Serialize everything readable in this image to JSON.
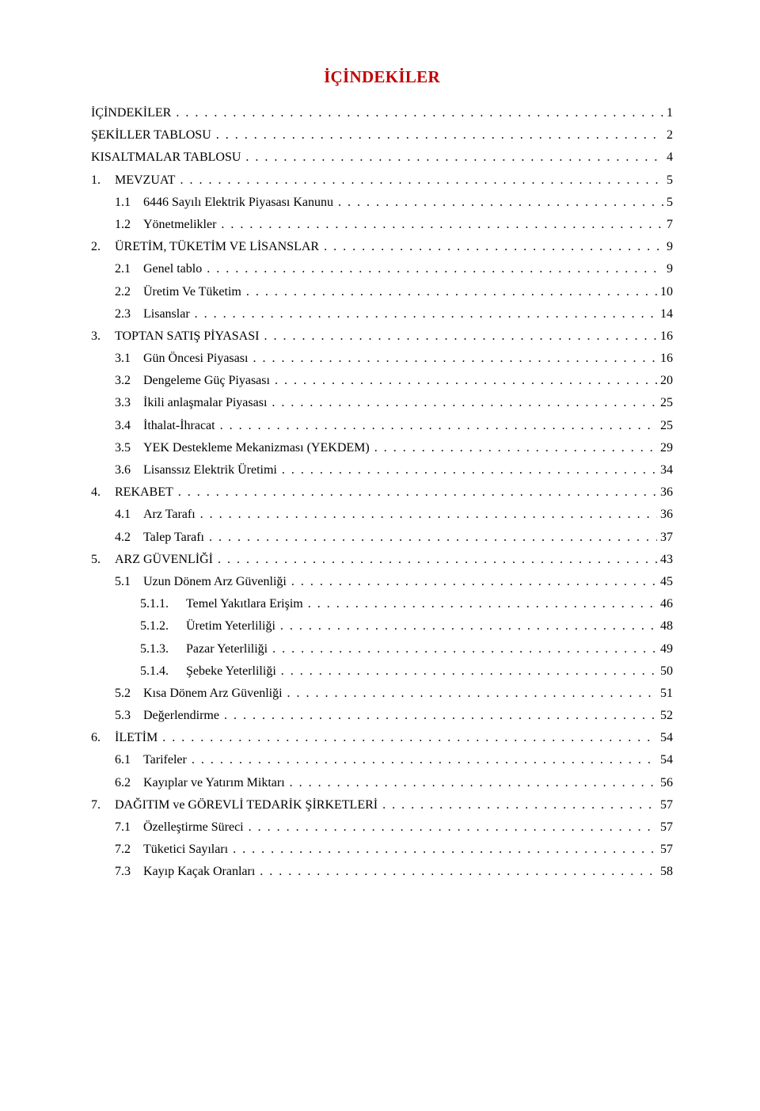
{
  "title": "İÇİNDEKİLER",
  "title_color": "#c00000",
  "text_color": "#000000",
  "background_color": "#ffffff",
  "font_family": "Times New Roman",
  "base_fontsize_pt": 12,
  "title_fontsize_pt": 16,
  "entries": [
    {
      "level": 0,
      "num": "",
      "text": "İÇİNDEKİLER",
      "page": "1"
    },
    {
      "level": 0,
      "num": "",
      "text": "ŞEKİLLER TABLOSU",
      "page": "2"
    },
    {
      "level": 0,
      "num": "",
      "text": "KISALTMALAR TABLOSU",
      "page": "4"
    },
    {
      "level": 0,
      "num": "1.",
      "text": "MEVZUAT",
      "page": "5"
    },
    {
      "level": 1,
      "num": "1.1",
      "text": "6446 Sayılı Elektrik Piyasası Kanunu",
      "page": "5"
    },
    {
      "level": 1,
      "num": "1.2",
      "text": "Yönetmelikler",
      "page": "7"
    },
    {
      "level": 0,
      "num": "2.",
      "text": "ÜRETİM, TÜKETİM VE LİSANSLAR",
      "page": "9"
    },
    {
      "level": 1,
      "num": "2.1",
      "text": "Genel tablo",
      "page": "9"
    },
    {
      "level": 1,
      "num": "2.2",
      "text": "Üretim Ve Tüketim",
      "page": "10"
    },
    {
      "level": 1,
      "num": "2.3",
      "text": "Lisanslar",
      "page": "14"
    },
    {
      "level": 0,
      "num": "3.",
      "text": "TOPTAN SATIŞ PİYASASI",
      "page": "16"
    },
    {
      "level": 1,
      "num": "3.1",
      "text": "Gün Öncesi Piyasası",
      "page": "16"
    },
    {
      "level": 1,
      "num": "3.2",
      "text": "Dengeleme Güç Piyasası",
      "page": "20"
    },
    {
      "level": 1,
      "num": "3.3",
      "text": "İkili anlaşmalar Piyasası",
      "page": "25"
    },
    {
      "level": 1,
      "num": "3.4",
      "text": "İthalat-İhracat",
      "page": "25"
    },
    {
      "level": 1,
      "num": "3.5",
      "text": "YEK Destekleme Mekanizması (YEKDEM)",
      "page": "29"
    },
    {
      "level": 1,
      "num": "3.6",
      "text": "Lisanssız Elektrik Üretimi",
      "page": "34"
    },
    {
      "level": 0,
      "num": "4.",
      "text": "REKABET",
      "page": "36"
    },
    {
      "level": 1,
      "num": "4.1",
      "text": "Arz Tarafı",
      "page": "36"
    },
    {
      "level": 1,
      "num": "4.2",
      "text": "Talep Tarafı",
      "page": "37"
    },
    {
      "level": 0,
      "num": "5.",
      "text": "ARZ GÜVENLİĞİ",
      "page": "43"
    },
    {
      "level": 1,
      "num": "5.1",
      "text": "Uzun Dönem Arz Güvenliği",
      "page": "45"
    },
    {
      "level": 2,
      "num": "5.1.1.",
      "text": "Temel Yakıtlara Erişim",
      "page": "46"
    },
    {
      "level": 2,
      "num": "5.1.2.",
      "text": "Üretim Yeterliliği",
      "page": "48"
    },
    {
      "level": 2,
      "num": "5.1.3.",
      "text": "Pazar Yeterliliği",
      "page": "49"
    },
    {
      "level": 2,
      "num": "5.1.4.",
      "text": "Şebeke Yeterliliği",
      "page": "50"
    },
    {
      "level": 1,
      "num": "5.2",
      "text": "Kısa Dönem Arz Güvenliği",
      "page": "51"
    },
    {
      "level": 1,
      "num": "5.3",
      "text": "Değerlendirme",
      "page": "52"
    },
    {
      "level": 0,
      "num": "6.",
      "text": "İLETİM",
      "page": "54"
    },
    {
      "level": 1,
      "num": "6.1",
      "text": "Tarifeler",
      "page": "54"
    },
    {
      "level": 1,
      "num": "6.2",
      "text": "Kayıplar ve Yatırım Miktarı",
      "page": "56"
    },
    {
      "level": 0,
      "num": "7.",
      "text": "DAĞITIM ve GÖREVLİ TEDARİK ŞİRKETLERİ",
      "page": "57"
    },
    {
      "level": 1,
      "num": "7.1",
      "text": "Özelleştirme Süreci",
      "page": "57"
    },
    {
      "level": 1,
      "num": "7.2",
      "text": "Tüketici Sayıları",
      "page": "57"
    },
    {
      "level": 1,
      "num": "7.3",
      "text": "Kayıp Kaçak Oranları",
      "page": "58"
    }
  ]
}
